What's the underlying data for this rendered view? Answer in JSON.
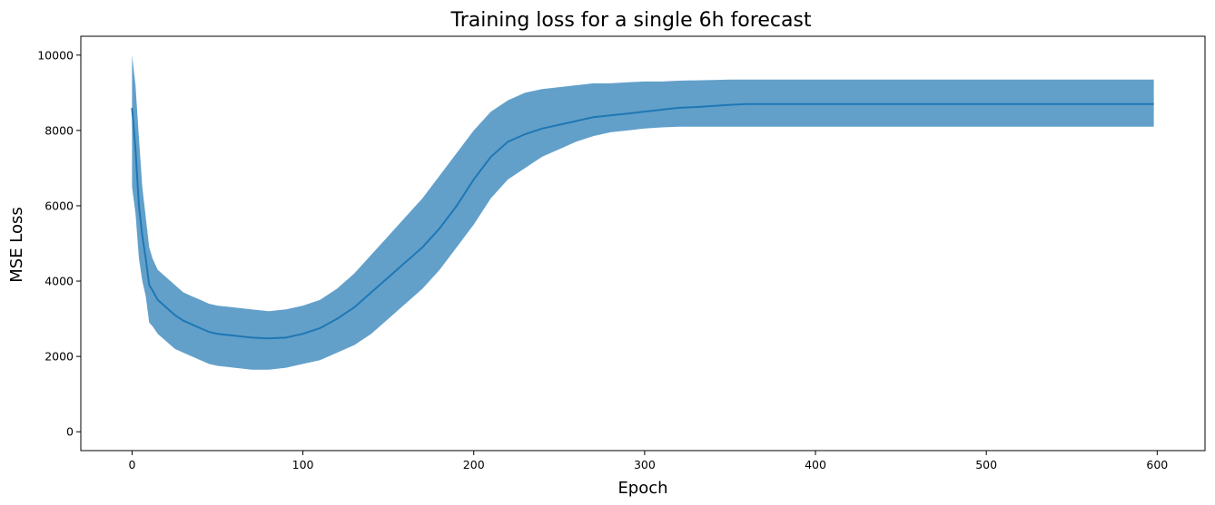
{
  "chart_data": {
    "type": "line",
    "title": "Training loss for a single 6h forecast",
    "xlabel": "Epoch",
    "ylabel": "MSE Loss",
    "xlim": [
      -30,
      628
    ],
    "ylim": [
      -500,
      10500
    ],
    "xticks": [
      0,
      100,
      200,
      300,
      400,
      500,
      600
    ],
    "yticks": [
      0,
      2000,
      4000,
      6000,
      8000,
      10000
    ],
    "grid": false,
    "line_color": "#1f77b4",
    "band_color": "#1f77b4",
    "band_opacity": 0.7,
    "series": [
      {
        "values_description_free": true,
        "x": [
          0,
          2,
          4,
          6,
          8,
          10,
          12,
          15,
          20,
          25,
          30,
          35,
          40,
          45,
          50,
          60,
          70,
          80,
          90,
          100,
          110,
          120,
          130,
          140,
          150,
          160,
          170,
          180,
          190,
          200,
          210,
          220,
          230,
          240,
          250,
          260,
          270,
          280,
          290,
          300,
          310,
          320,
          330,
          340,
          350,
          360,
          380,
          400,
          450,
          500,
          550,
          598
        ],
        "mean": [
          8600,
          7500,
          6000,
          5200,
          4600,
          3900,
          3750,
          3500,
          3300,
          3100,
          2950,
          2850,
          2750,
          2650,
          2600,
          2550,
          2500,
          2480,
          2500,
          2600,
          2750,
          3000,
          3300,
          3700,
          4100,
          4500,
          4900,
          5400,
          6000,
          6700,
          7300,
          7700,
          7900,
          8050,
          8150,
          8250,
          8350,
          8400,
          8450,
          8500,
          8550,
          8600,
          8620,
          8650,
          8680,
          8700,
          8700,
          8700,
          8700,
          8700,
          8700,
          8700
        ],
        "upper": [
          10000,
          9200,
          7800,
          6500,
          5700,
          4900,
          4600,
          4300,
          4100,
          3900,
          3700,
          3600,
          3500,
          3400,
          3350,
          3300,
          3250,
          3200,
          3250,
          3350,
          3500,
          3800,
          4200,
          4700,
          5200,
          5700,
          6200,
          6800,
          7400,
          8000,
          8500,
          8800,
          9000,
          9100,
          9150,
          9200,
          9250,
          9250,
          9280,
          9300,
          9300,
          9320,
          9330,
          9340,
          9350,
          9350,
          9350,
          9350,
          9350,
          9350,
          9350,
          9350
        ],
        "lower": [
          6500,
          5800,
          4600,
          4000,
          3600,
          2900,
          2800,
          2600,
          2400,
          2200,
          2100,
          2000,
          1900,
          1800,
          1750,
          1700,
          1650,
          1650,
          1700,
          1800,
          1900,
          2100,
          2300,
          2600,
          3000,
          3400,
          3800,
          4300,
          4900,
          5500,
          6200,
          6700,
          7000,
          7300,
          7500,
          7700,
          7850,
          7950,
          8000,
          8050,
          8080,
          8100,
          8100,
          8100,
          8100,
          8100,
          8100,
          8100,
          8100,
          8100,
          8100,
          8100
        ]
      }
    ]
  }
}
